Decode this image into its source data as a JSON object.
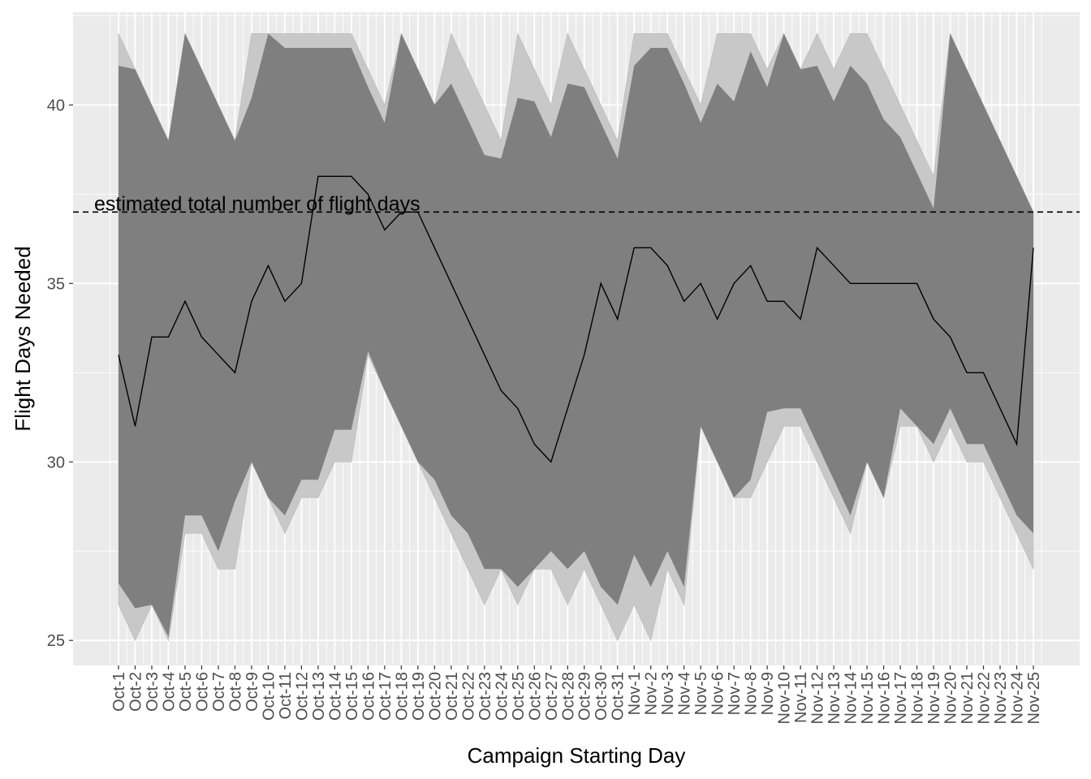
{
  "chart_data": {
    "type": "area",
    "xlabel": "Campaign Starting Day",
    "ylabel": "Flight Days Needed",
    "ylim": [
      24.3,
      42.6
    ],
    "yticks": [
      25,
      30,
      35,
      40
    ],
    "grid": true,
    "categories": [
      "Oct-1",
      "Oct-2",
      "Oct-3",
      "Oct-4",
      "Oct-5",
      "Oct-6",
      "Oct-7",
      "Oct-8",
      "Oct-9",
      "Oct-10",
      "Oct-11",
      "Oct-12",
      "Oct-13",
      "Oct-14",
      "Oct-15",
      "Oct-16",
      "Oct-17",
      "Oct-18",
      "Oct-19",
      "Oct-20",
      "Oct-21",
      "Oct-22",
      "Oct-23",
      "Oct-24",
      "Oct-25",
      "Oct-26",
      "Oct-27",
      "Oct-28",
      "Oct-29",
      "Oct-30",
      "Oct-31",
      "Nov-1",
      "Nov-2",
      "Nov-3",
      "Nov-4",
      "Nov-5",
      "Nov-6",
      "Nov-7",
      "Nov-8",
      "Nov-9",
      "Nov-10",
      "Nov-11",
      "Nov-12",
      "Nov-13",
      "Nov-14",
      "Nov-15",
      "Nov-16",
      "Nov-17",
      "Nov-18",
      "Nov-19",
      "Nov-20",
      "Nov-21",
      "Nov-22",
      "Nov-23",
      "Nov-24",
      "Nov-25"
    ],
    "series": [
      {
        "role": "outer_upper",
        "values": [
          42,
          41,
          40,
          39,
          42,
          41,
          40,
          39,
          42,
          42,
          42,
          42,
          42,
          42,
          42,
          41,
          40,
          42,
          41,
          40,
          42,
          41,
          40,
          39,
          42,
          41,
          40,
          42,
          41,
          40,
          39,
          42,
          42,
          42,
          41,
          40,
          42,
          42,
          42,
          41,
          42,
          41,
          42,
          41,
          42,
          42,
          41,
          40,
          39,
          38,
          42,
          41,
          40,
          39,
          38,
          37
        ]
      },
      {
        "role": "outer_lower",
        "values": [
          26,
          25,
          26,
          25,
          28,
          28,
          27,
          27,
          30,
          29,
          28,
          29,
          29,
          30,
          30,
          33,
          32,
          31,
          30,
          29,
          28,
          27,
          26,
          27,
          26,
          27,
          27,
          26,
          27,
          26,
          25,
          26,
          25,
          27,
          26,
          31,
          30,
          29,
          29,
          30,
          31,
          31,
          30,
          29,
          28,
          30,
          29,
          31,
          31,
          30,
          31,
          30,
          30,
          29,
          28,
          27
        ]
      },
      {
        "role": "inner_upper",
        "values": [
          41.1,
          41,
          40,
          39,
          42,
          41,
          40,
          39,
          40.2,
          42,
          41.6,
          41.6,
          41.6,
          41.6,
          41.6,
          40.5,
          39.5,
          42,
          41,
          40,
          40.6,
          39.6,
          38.6,
          38.5,
          40.2,
          40.1,
          39.1,
          40.6,
          40.5,
          39.5,
          38.5,
          41.1,
          41.6,
          41.6,
          40.6,
          39.5,
          40.6,
          40.1,
          41.5,
          40.5,
          42,
          41,
          41.1,
          40.1,
          41.1,
          40.6,
          39.6,
          39.1,
          38.1,
          37.1,
          42,
          41,
          40,
          39,
          38,
          37
        ]
      },
      {
        "role": "inner_lower",
        "values": [
          26.6,
          25.9,
          26,
          25.1,
          28.5,
          28.5,
          27.5,
          28.9,
          30,
          29,
          28.5,
          29.5,
          29.5,
          30.9,
          30.9,
          33.1,
          32,
          31,
          30,
          29.5,
          28.5,
          28,
          27,
          27,
          26.5,
          27,
          27.5,
          27,
          27.5,
          26.5,
          26,
          27.4,
          26.5,
          27.5,
          26.5,
          31,
          30,
          29,
          29.5,
          31.4,
          31.5,
          31.5,
          30.5,
          29.5,
          28.5,
          30,
          29,
          31.5,
          31,
          30.5,
          31.5,
          30.5,
          30.5,
          29.5,
          28.5,
          28
        ]
      },
      {
        "role": "median",
        "values": [
          33,
          31,
          33.5,
          33.5,
          34.5,
          33.5,
          33,
          32.5,
          34.5,
          35.5,
          34.5,
          35,
          38,
          38,
          38,
          37.5,
          36.5,
          37,
          37,
          36,
          35,
          34,
          33,
          32,
          31.5,
          30.5,
          30,
          31.5,
          33,
          35,
          34,
          36,
          36,
          35.5,
          34.5,
          35,
          34,
          35,
          35.5,
          34.5,
          34.5,
          34,
          36,
          35.5,
          35,
          35,
          35,
          35,
          35,
          34,
          33.5,
          32.5,
          32.5,
          31.5,
          30.5,
          36
        ]
      }
    ],
    "reference_line": {
      "y": 37,
      "style": "dashed",
      "label": "estimated total number of flight days"
    },
    "colors": {
      "panel": "#ebebeb",
      "grid": "#ffffff",
      "outer_band": "#c8c8c8",
      "inner_band": "#7f7f7f",
      "line": "#000000"
    }
  }
}
